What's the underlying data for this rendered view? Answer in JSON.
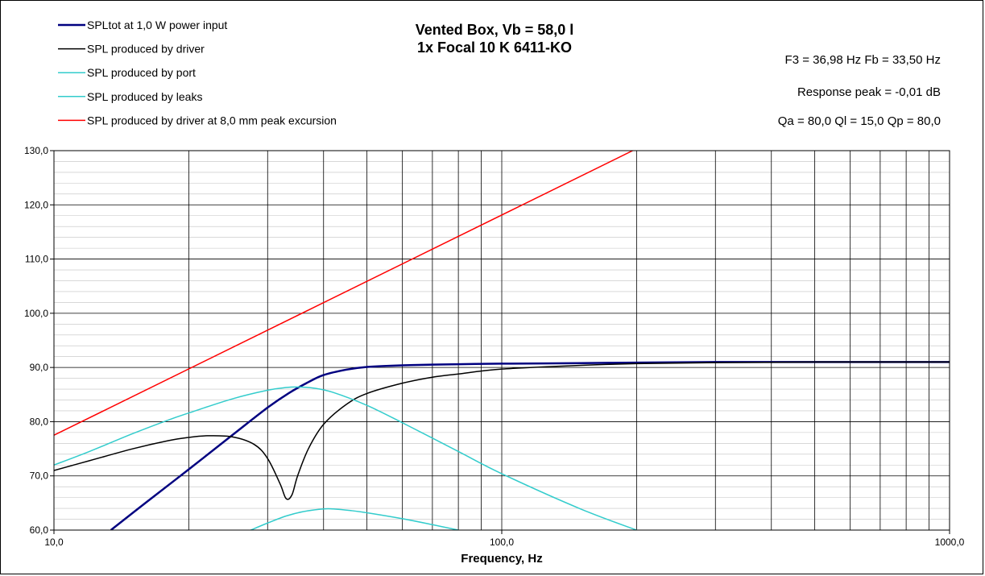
{
  "chart_data": {
    "type": "line",
    "title": [
      "Vented Box, Vb = 58,0 l",
      "1x Focal 10 K 6411-KO"
    ],
    "info": [
      "F3 = 36,98 Hz  Fb = 33,50 Hz",
      "Response  peak = -0,01 dB",
      "Qa = 80,0  Ql = 15,0  Qp = 80,0"
    ],
    "xlabel": "Frequency, Hz",
    "ylabel": "",
    "xscale": "log",
    "xlim": [
      10,
      1000
    ],
    "ylim": [
      60,
      130
    ],
    "xticks": [
      10,
      100,
      1000
    ],
    "xtick_labels": [
      "10,0",
      "100,0",
      "1000,0"
    ],
    "yticks": [
      60,
      70,
      80,
      90,
      100,
      110,
      120,
      130
    ],
    "ytick_labels": [
      "60,0",
      "70,0",
      "80,0",
      "90,0",
      "100,0",
      "110,0",
      "120,0",
      "130,0"
    ],
    "grid": true,
    "legend_position": "top-left",
    "series": [
      {
        "name": "SPLtot at 1,0 W power input",
        "color": "#000080",
        "width": 2.5,
        "x": [
          13.4,
          16,
          20,
          25,
          30,
          33.5,
          37,
          40,
          45,
          50,
          60,
          80,
          100,
          150,
          200,
          300,
          500,
          1000
        ],
        "y": [
          60,
          65,
          71.2,
          77.5,
          82.6,
          85.3,
          87.3,
          88.6,
          89.6,
          90.1,
          90.4,
          90.6,
          90.7,
          90.8,
          90.9,
          91,
          91,
          91
        ]
      },
      {
        "name": "SPL produced by driver",
        "color": "#000000",
        "width": 1.5,
        "x": [
          10,
          12,
          15,
          18,
          20,
          22,
          25,
          28,
          30,
          32,
          33,
          34,
          35,
          37,
          40,
          45,
          50,
          60,
          70,
          80,
          100,
          150,
          200,
          300,
          500,
          1000
        ],
        "y": [
          71,
          72.8,
          75,
          76.5,
          77.1,
          77.4,
          77.2,
          75.8,
          73.2,
          68.5,
          65.8,
          66.5,
          70,
          75,
          79.5,
          83.2,
          85.2,
          87.1,
          88.2,
          88.8,
          89.7,
          90.4,
          90.7,
          90.9,
          91,
          91
        ]
      },
      {
        "name": "SPL produced by port",
        "color": "#33cccc",
        "width": 1.5,
        "x": [
          10,
          12,
          15,
          18,
          20,
          25,
          30,
          33,
          35,
          38,
          42,
          50,
          60,
          80,
          100,
          150,
          200
        ],
        "y": [
          72,
          74.5,
          77.8,
          80.3,
          81.6,
          84.2,
          85.8,
          86.3,
          86.4,
          86.2,
          85.4,
          83,
          79.8,
          74.5,
          70.4,
          63.9,
          60
        ]
      },
      {
        "name": "SPL produced by leaks",
        "color": "#33cccc",
        "width": 1.5,
        "x": [
          27.5,
          30,
          33,
          36,
          40,
          42,
          46,
          50,
          60,
          70,
          80
        ],
        "y": [
          60,
          61.3,
          62.6,
          63.4,
          63.9,
          63.9,
          63.6,
          63.2,
          62.1,
          61,
          60
        ]
      },
      {
        "name": "SPL produced by driver at 8,0 mm peak excursion",
        "color": "#ff0000",
        "width": 1.5,
        "x": [
          10,
          196
        ],
        "y": [
          77.5,
          130
        ]
      }
    ]
  }
}
